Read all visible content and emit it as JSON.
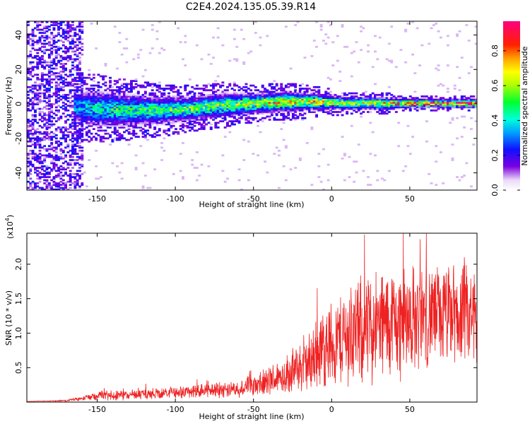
{
  "title": "C2E4.2024.135.05.39.R14",
  "chart_data": [
    {
      "type": "heatmap",
      "xlabel": "Height of straight line (km)",
      "ylabel": "Frequency (Hz)",
      "xlim": [
        -195,
        93
      ],
      "ylim": [
        -50,
        48
      ],
      "xticks": [
        -150,
        -100,
        -50,
        0,
        50
      ],
      "yticks": [
        -40,
        -20,
        0,
        20,
        40
      ],
      "colorbar": {
        "label": "Normalized spectral amplitude",
        "range": [
          0,
          0.97
        ],
        "ticks": [
          0.0,
          0.2,
          0.4,
          0.6,
          0.8
        ],
        "colormap": "white-violet-blue-cyan-green-yellow-orange-red-magenta"
      },
      "ridge": {
        "x": [
          -165,
          -150,
          -130,
          -110,
          -90,
          -70,
          -50,
          -30,
          -10,
          10,
          30,
          50,
          70,
          93
        ],
        "center_freq": [
          -2,
          -3,
          -4,
          -4,
          -3,
          -1,
          0,
          1,
          1,
          0,
          0,
          0,
          0,
          0
        ],
        "half_width": [
          9,
          9,
          8,
          7,
          6,
          6,
          5,
          5,
          4,
          3,
          3,
          2,
          2,
          2
        ],
        "peak_amplitude": [
          0.35,
          0.45,
          0.5,
          0.5,
          0.55,
          0.6,
          0.65,
          0.75,
          0.7,
          0.6,
          0.7,
          0.85,
          0.9,
          0.9
        ]
      },
      "noise_region": {
        "x_range": [
          -195,
          -160
        ],
        "freq_range": [
          -50,
          48
        ],
        "amplitude": 0.25
      }
    },
    {
      "type": "line",
      "xlabel": "Height of straight line (km)",
      "ylabel": "SNR (10 * v/v)",
      "y_scale_label": "(x10",
      "y_scale_exp": "4",
      "y_scale_close": ")",
      "xlim": [
        -195,
        93
      ],
      "ylim": [
        0,
        2.45
      ],
      "xticks": [
        -150,
        -100,
        -50,
        0,
        50
      ],
      "yticks": [
        0.5,
        1.0,
        1.5,
        2.0
      ],
      "ytick_labels": [
        "0.5",
        "1.0",
        "1.5",
        "2.0"
      ],
      "series": [
        {
          "color": "#ee2222",
          "envelope_x": [
            -195,
            -170,
            -160,
            -150,
            -140,
            -120,
            -100,
            -80,
            -60,
            -45,
            -35,
            -25,
            -15,
            -8,
            0,
            10,
            20,
            30,
            40,
            50,
            60,
            70,
            80,
            93
          ],
          "envelope_mean": [
            0.01,
            0.02,
            0.05,
            0.1,
            0.1,
            0.11,
            0.14,
            0.17,
            0.2,
            0.25,
            0.35,
            0.45,
            0.55,
            0.75,
            0.85,
            0.95,
            1.05,
            1.1,
            1.15,
            1.2,
            1.25,
            1.25,
            1.25,
            1.2
          ],
          "envelope_amp": [
            0.0,
            0.01,
            0.03,
            0.07,
            0.07,
            0.07,
            0.08,
            0.1,
            0.12,
            0.18,
            0.25,
            0.3,
            0.4,
            0.55,
            0.6,
            0.7,
            0.75,
            0.8,
            0.8,
            0.75,
            0.7,
            0.7,
            0.7,
            0.7
          ]
        }
      ]
    }
  ]
}
